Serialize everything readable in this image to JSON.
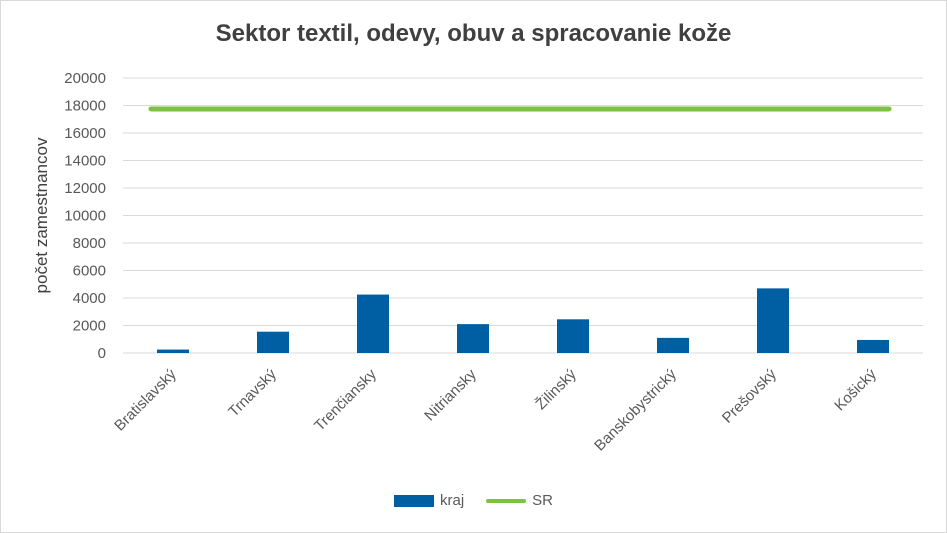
{
  "chart_data": {
    "type": "bar",
    "title": "Sektor textil, odevy, obuv a spracovanie kože",
    "xlabel": "",
    "ylabel": "počet zamestnancov",
    "ylim": [
      0,
      20000
    ],
    "yticks": [
      0,
      2000,
      4000,
      6000,
      8000,
      10000,
      12000,
      14000,
      16000,
      18000,
      20000
    ],
    "categories": [
      "Bratislavský",
      "Trnavský",
      "Trenčiansky",
      "Nitriansky",
      "Žilinský",
      "Banskobystrický",
      "Prešovský",
      "Košický"
    ],
    "series": [
      {
        "name": "kraj",
        "kind": "bar",
        "color": "#005ea2",
        "values": [
          250,
          1550,
          4250,
          2100,
          2450,
          1100,
          4700,
          950
        ]
      },
      {
        "name": "SR",
        "kind": "line",
        "color": "#7dc242",
        "values": [
          17750,
          17750,
          17750,
          17750,
          17750,
          17750,
          17750,
          17750
        ]
      }
    ],
    "grid": true,
    "legend_position": "bottom"
  }
}
